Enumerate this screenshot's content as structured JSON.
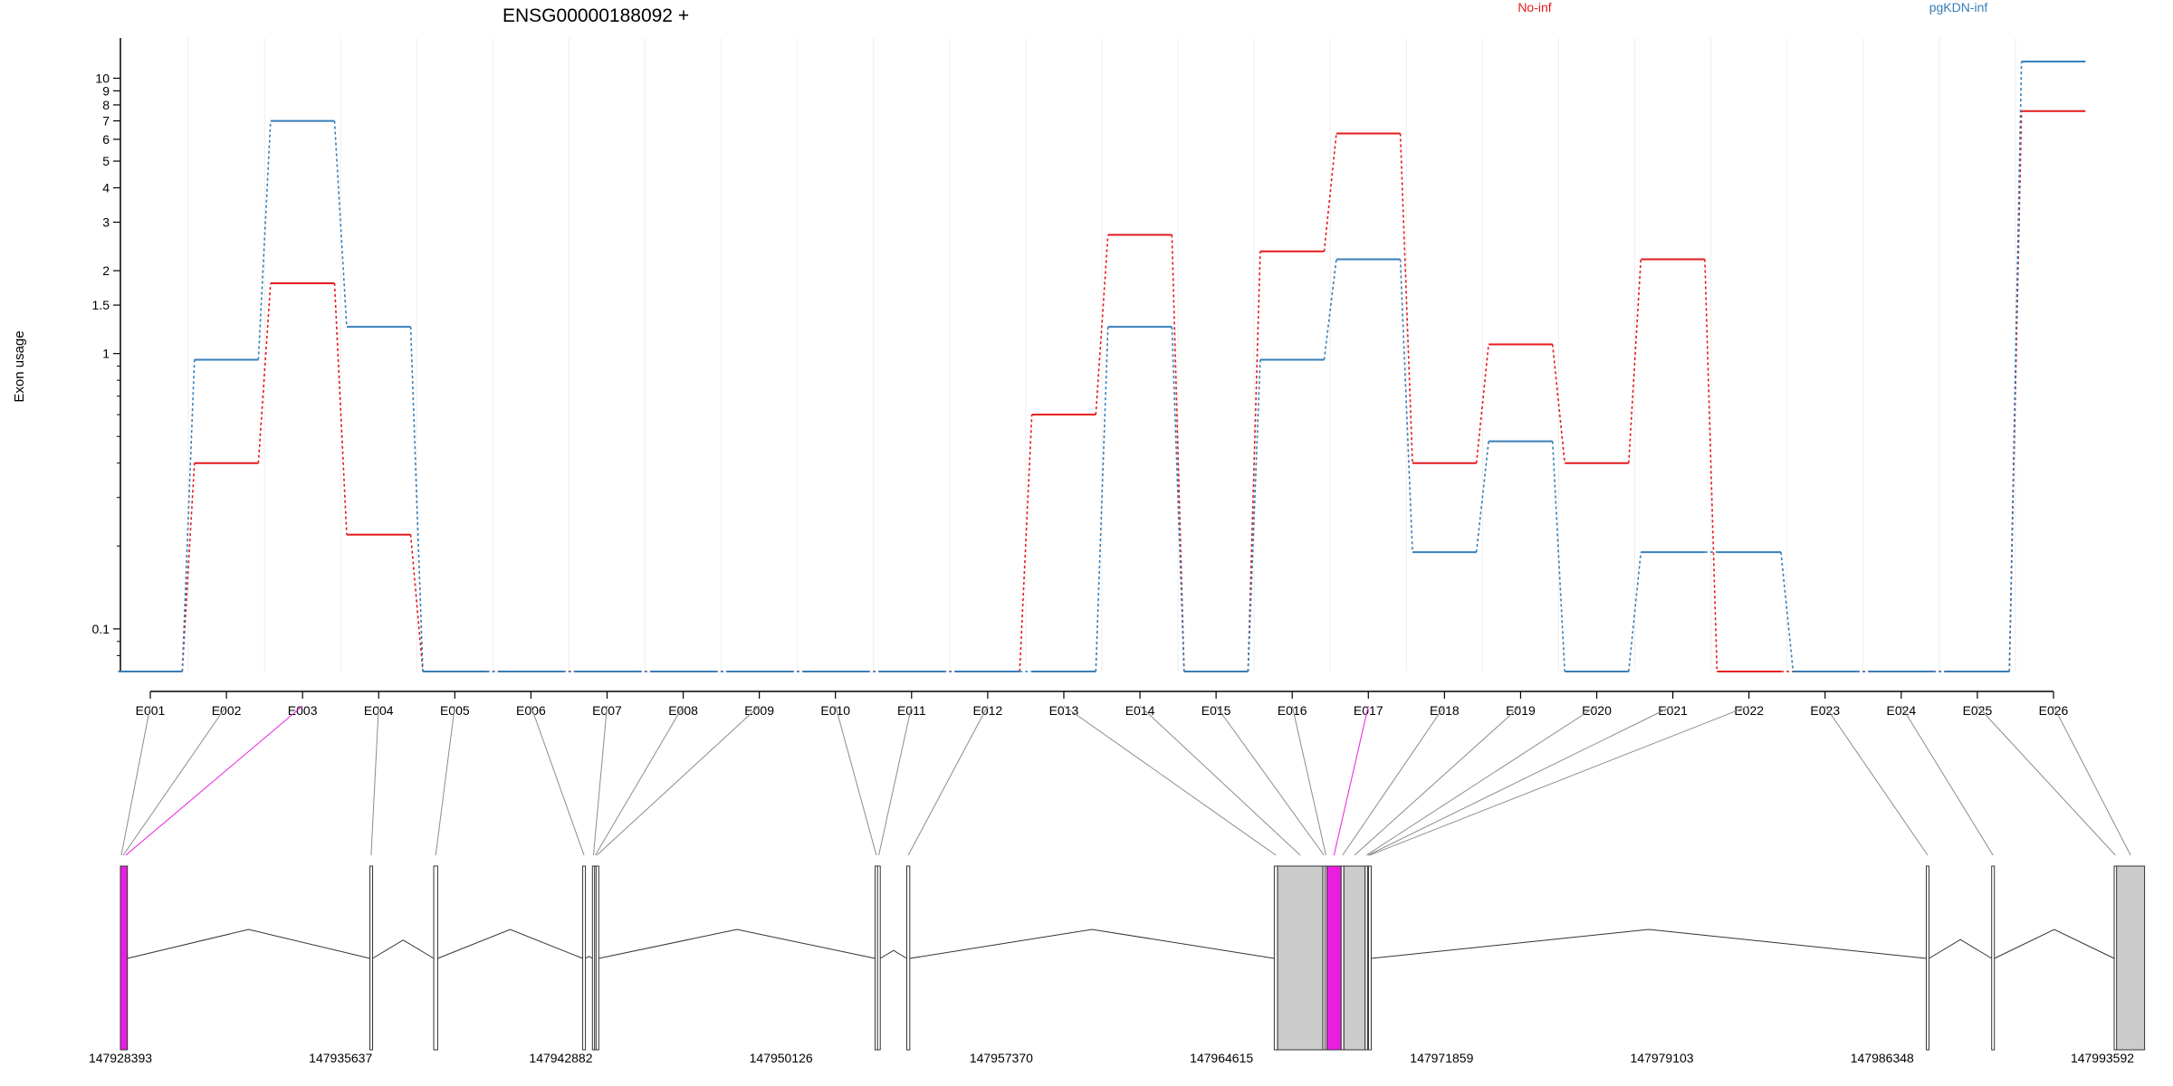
{
  "chart_data": {
    "type": "line",
    "title": "ENSG00000188092 +",
    "ylabel": "Exon usage",
    "xlabel": "",
    "y_scale": "log",
    "ylim": [
      0.07,
      14
    ],
    "yticks": [
      0.1,
      1,
      1.5,
      2,
      3,
      4,
      5,
      6,
      7,
      8,
      9,
      10
    ],
    "grid": "vertical-light",
    "legend_placement": "top-right",
    "categories": [
      "E001",
      "E002",
      "E003",
      "E004",
      "E005",
      "E006",
      "E007",
      "E008",
      "E009",
      "E010",
      "E011",
      "E012",
      "E013",
      "E014",
      "E015",
      "E016",
      "E017",
      "E018",
      "E019",
      "E020",
      "E021",
      "E022",
      "E023",
      "E024",
      "E025",
      "E026"
    ],
    "series": [
      {
        "name": "No-inf",
        "color": "#e41a1c",
        "values": [
          0.07,
          0.4,
          1.8,
          0.22,
          0.07,
          0.07,
          0.07,
          0.07,
          0.07,
          0.07,
          0.07,
          0.07,
          0.6,
          2.7,
          0.07,
          2.35,
          6.3,
          0.4,
          1.08,
          0.4,
          2.2,
          0.07,
          0.07,
          0.07,
          0.07,
          7.6
        ]
      },
      {
        "name": "pgKDN-inf",
        "color": "#377eb8",
        "values": [
          0.07,
          0.95,
          7.0,
          1.25,
          0.07,
          0.07,
          0.07,
          0.07,
          0.07,
          0.07,
          0.07,
          0.07,
          0.07,
          1.25,
          0.07,
          0.95,
          2.2,
          0.19,
          0.48,
          0.07,
          0.19,
          0.19,
          0.07,
          0.07,
          0.07,
          11.5
        ]
      }
    ],
    "highlighted_exon": "E017",
    "highlight_color": "#e91ee0",
    "genomic_axis": {
      "range": [
        147928393,
        147993592
      ],
      "ticks": [
        147928393,
        147935637,
        147942882,
        147950126,
        147957370,
        147964615,
        147971859,
        147979103,
        147986348,
        147993592
      ]
    },
    "exons": [
      {
        "id": "E001",
        "start": 147928393,
        "end": 147928450
      },
      {
        "id": "E002",
        "start": 147928450,
        "end": 147928520
      },
      {
        "id": "E003",
        "start": 147928520,
        "end": 147928620
      },
      {
        "id": "E004",
        "start": 147936600,
        "end": 147936680
      },
      {
        "id": "E005",
        "start": 147938700,
        "end": 147938830
      },
      {
        "id": "E006",
        "start": 147943600,
        "end": 147943690
      },
      {
        "id": "E007",
        "start": 147943920,
        "end": 147943990
      },
      {
        "id": "E008",
        "start": 147943990,
        "end": 147944040
      },
      {
        "id": "E009",
        "start": 147944040,
        "end": 147944090
      },
      {
        "id": "E010",
        "start": 147953220,
        "end": 147953300
      },
      {
        "id": "E011",
        "start": 147953300,
        "end": 147953380
      },
      {
        "id": "E012",
        "start": 147954260,
        "end": 147954360
      },
      {
        "id": "E013",
        "start": 147966350,
        "end": 147966460
      },
      {
        "id": "E014",
        "start": 147966460,
        "end": 147967950
      },
      {
        "id": "E015",
        "start": 147967950,
        "end": 147968020
      },
      {
        "id": "E016",
        "start": 147968020,
        "end": 147968080
      },
      {
        "id": "E017",
        "start": 147968080,
        "end": 147968550
      },
      {
        "id": "E018",
        "start": 147968550,
        "end": 147968640
      },
      {
        "id": "E019",
        "start": 147968640,
        "end": 147969340
      },
      {
        "id": "E020",
        "start": 147969340,
        "end": 147969420
      },
      {
        "id": "E021",
        "start": 147969420,
        "end": 147969450
      },
      {
        "id": "E022",
        "start": 147969450,
        "end": 147969520
      },
      {
        "id": "E023",
        "start": 147987800,
        "end": 147987890
      },
      {
        "id": "E024",
        "start": 147989950,
        "end": 147990040
      },
      {
        "id": "E025",
        "start": 147993980,
        "end": 147994060
      },
      {
        "id": "E026",
        "start": 147994060,
        "end": 147994980
      }
    ]
  }
}
